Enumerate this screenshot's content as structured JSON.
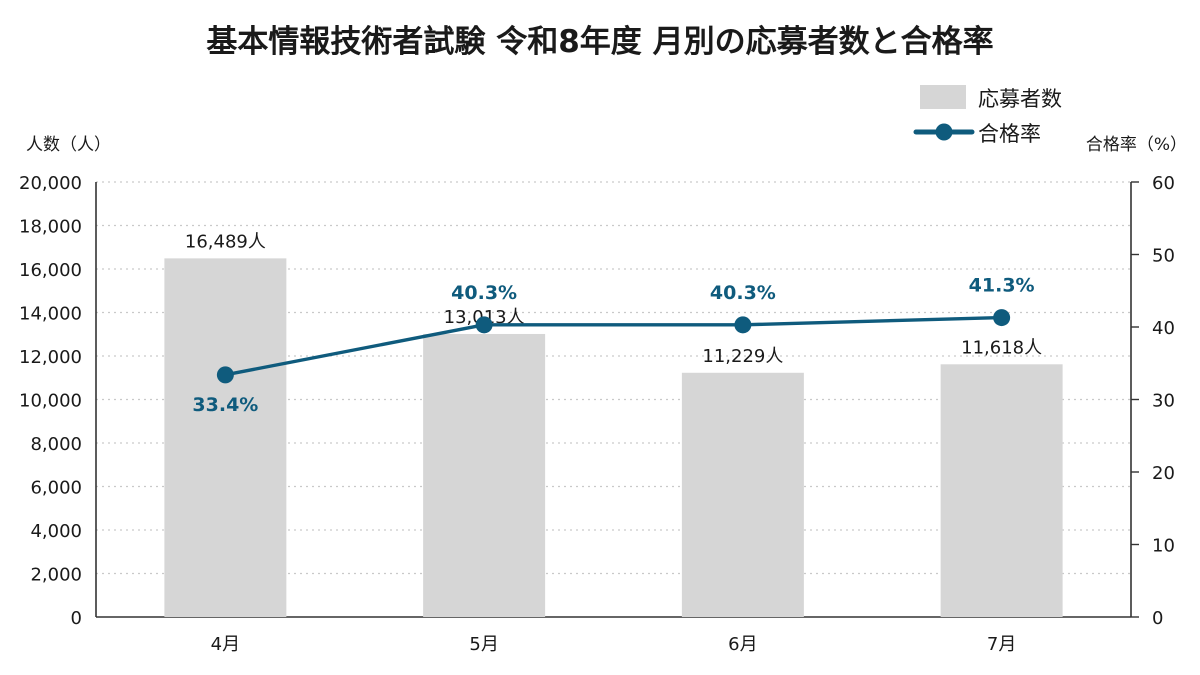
{
  "title": "基本情報技術者試験 令和8年度 月別の応募者数と合格率",
  "legend": {
    "bar_label": "応募者数",
    "line_label": "合格率"
  },
  "axis_labels": {
    "left": "人数（人）",
    "right": "合格率（%）"
  },
  "colors": {
    "bar": "#d6d6d6",
    "line": "#0f5b7d",
    "text": "#1a1a1a",
    "grid": "#c9c9c9"
  },
  "chart_data": {
    "type": "bar",
    "title": "基本情報技術者試験 令和8年度 月別の応募者数と合格率",
    "categories": [
      "4月",
      "5月",
      "6月",
      "7月"
    ],
    "series": [
      {
        "name": "応募者数",
        "type": "bar",
        "axis": "left",
        "values": [
          16489,
          13013,
          11229,
          11618
        ],
        "labels": [
          "16,489人",
          "13,013人",
          "11,229人",
          "11,618人"
        ]
      },
      {
        "name": "合格率",
        "type": "line",
        "axis": "right",
        "values": [
          33.4,
          40.3,
          40.3,
          41.3
        ],
        "labels": [
          "33.4%",
          "40.3%",
          "40.3%",
          "41.3%"
        ]
      }
    ],
    "ylabel": "人数（人）",
    "y2label": "合格率（%）",
    "ylim": [
      0,
      20000
    ],
    "y2lim": [
      0,
      60
    ],
    "yticks": [
      0,
      2000,
      4000,
      6000,
      8000,
      10000,
      12000,
      14000,
      16000,
      18000,
      20000
    ],
    "yticklabels": [
      "0",
      "2,000",
      "4,000",
      "6,000",
      "8,000",
      "10,000",
      "12,000",
      "14,000",
      "16,000",
      "18,000",
      "20,000"
    ],
    "y2ticks": [
      0,
      10,
      20,
      30,
      40,
      50,
      60
    ],
    "y2ticklabels": [
      "0",
      "10",
      "20",
      "30",
      "40",
      "50",
      "60"
    ],
    "grid": true,
    "legend_position": "top-right"
  }
}
